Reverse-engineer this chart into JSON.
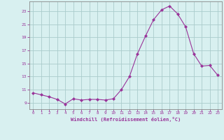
{
  "x": [
    0,
    1,
    2,
    3,
    4,
    5,
    6,
    7,
    8,
    9,
    10,
    11,
    12,
    13,
    14,
    15,
    16,
    17,
    18,
    19,
    20,
    21,
    22,
    23
  ],
  "y": [
    10.5,
    10.2,
    9.9,
    9.5,
    8.8,
    9.6,
    9.4,
    9.5,
    9.5,
    9.4,
    9.6,
    11.0,
    13.0,
    16.5,
    19.2,
    21.7,
    23.2,
    23.8,
    22.6,
    20.6,
    16.5,
    14.6,
    14.7,
    13.2
  ],
  "line_color": "#993399",
  "marker": "D",
  "marker_size": 2.0,
  "bg_color": "#d8f0f0",
  "grid_color": "#aacccc",
  "xlabel": "Windchill (Refroidissement éolien,°C)",
  "xlabel_color": "#993399",
  "tick_color": "#993399",
  "ylabel_ticks": [
    9,
    11,
    13,
    15,
    17,
    19,
    21,
    23
  ],
  "ylim": [
    8.0,
    24.5
  ],
  "xlim": [
    -0.5,
    23.5
  ],
  "figsize": [
    3.2,
    2.0
  ],
  "dpi": 100
}
